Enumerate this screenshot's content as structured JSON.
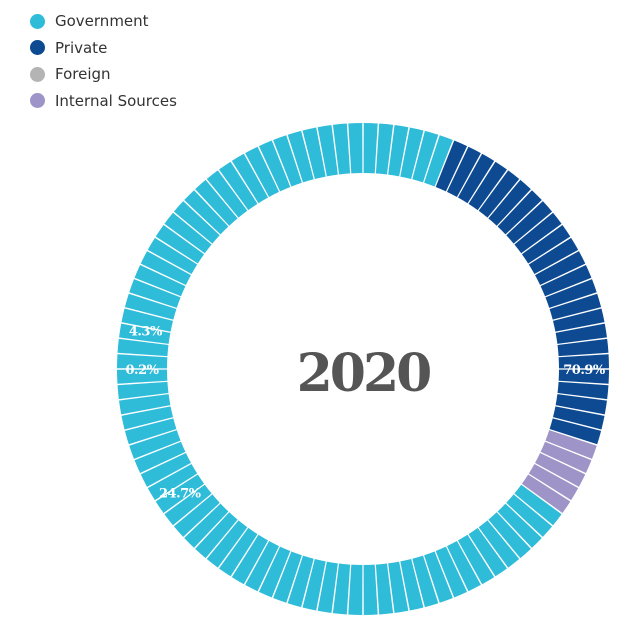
{
  "chart_data": {
    "type": "pie",
    "center_label": "2020",
    "legend_placement": "top-left",
    "slices": [
      {
        "name": "Government",
        "value": 70.9,
        "label": "70.9%",
        "color": "#2fbcd9"
      },
      {
        "name": "Private",
        "value": 24.7,
        "label": "24.7%",
        "color": "#0d4a91"
      },
      {
        "name": "Foreign",
        "value": 0.2,
        "label": "0.2%",
        "color": "#b4b4b4"
      },
      {
        "name": "Internal Sources",
        "value": 4.3,
        "label": "4.3%",
        "color": "#9f94c8"
      }
    ]
  }
}
